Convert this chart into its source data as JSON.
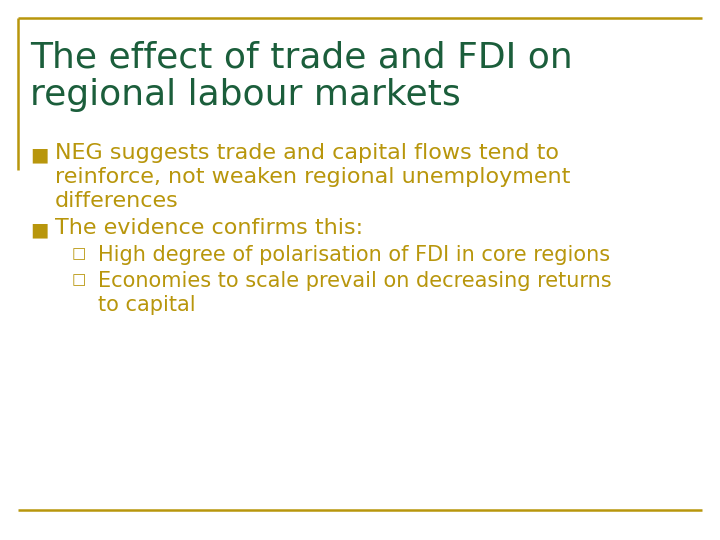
{
  "background_color": "#ffffff",
  "border_color": "#B8960C",
  "title_text_line1": "The effect of trade and FDI on",
  "title_text_line2": "regional labour markets",
  "title_color": "#1B5E3B",
  "title_fontsize": 26,
  "bullet_color": "#B8960C",
  "bullet_fontsize": 16,
  "sub_bullet_fontsize": 15,
  "bullet1_line1": "NEG suggests trade and capital flows tend to",
  "bullet1_line2": "reinforce, not weaken regional unemployment",
  "bullet1_line3": "differences",
  "bullet2": "The evidence confirms this:",
  "sub_bullet1": "High degree of polarisation of FDI in core regions",
  "sub_bullet2_line1": "Economies to scale prevail on decreasing returns",
  "sub_bullet2_line2": "to capital"
}
